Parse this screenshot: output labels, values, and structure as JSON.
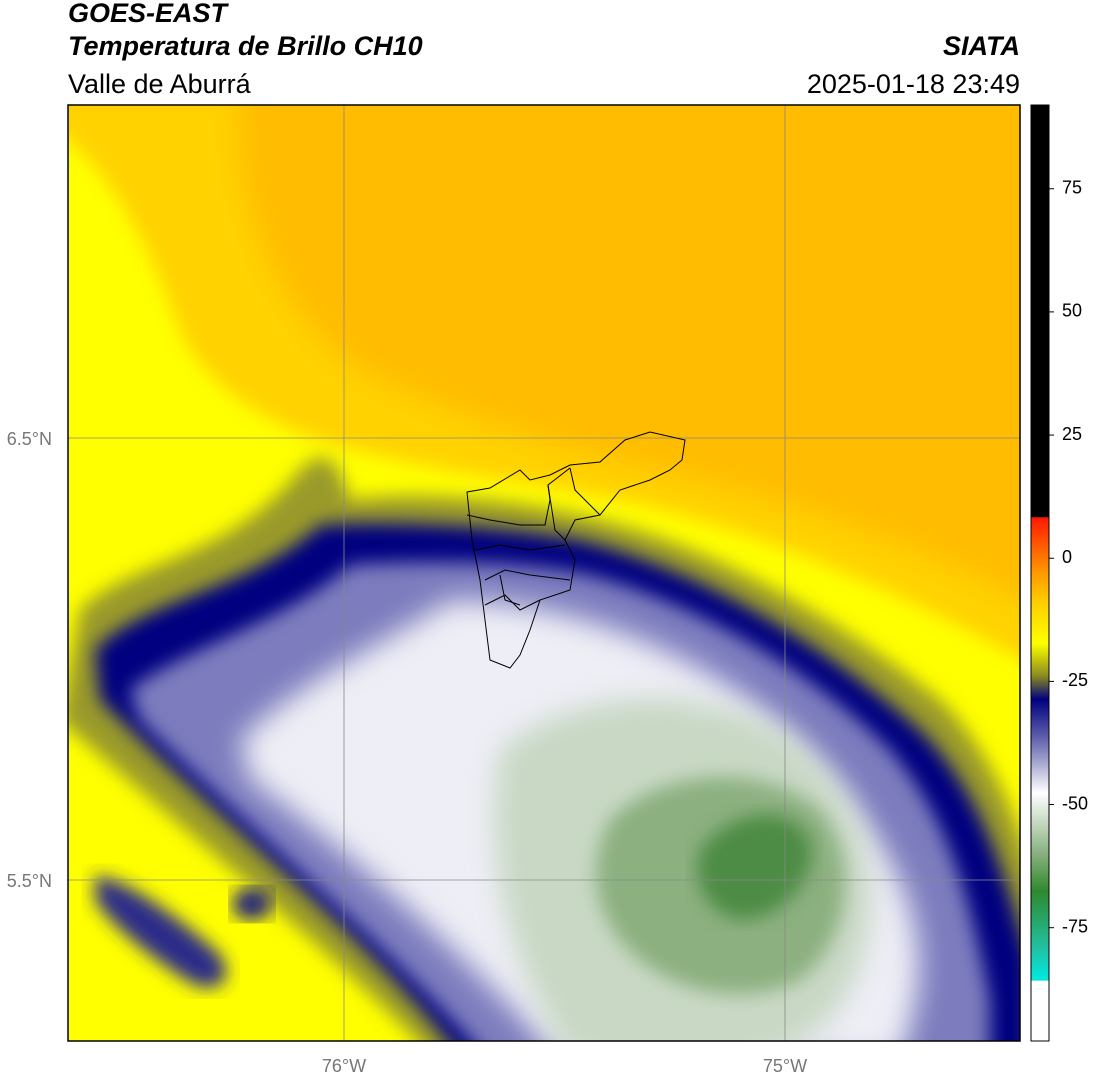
{
  "header": {
    "satellite": "GOES-EAST",
    "product": "Temperatura de Brillo CH10",
    "region": "Valle de Aburrá",
    "institution": "SIATA",
    "datetime": "2025-01-18 23:49"
  },
  "map": {
    "lat_labels": [
      "6.5°N",
      "5.5°N"
    ],
    "lon_labels": [
      "76°W",
      "75°W"
    ]
  },
  "colorbar": {
    "lim": [
      -98,
      92
    ],
    "ticks": [
      75,
      50,
      25,
      0,
      -25,
      -50,
      -75
    ]
  }
}
